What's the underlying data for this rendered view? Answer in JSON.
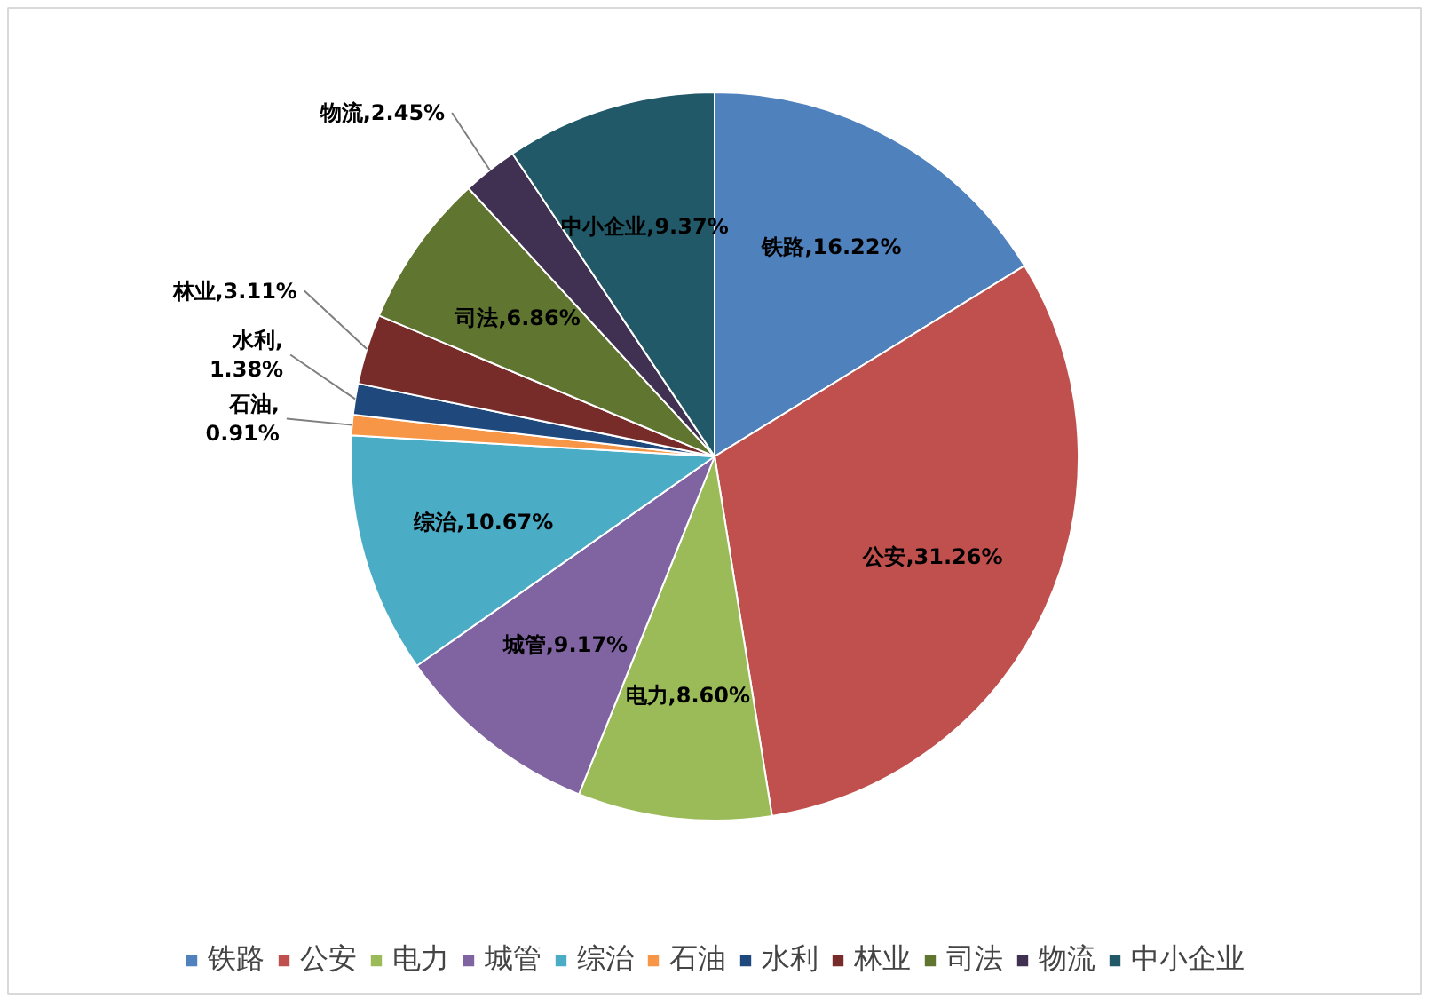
{
  "chart_data": {
    "type": "pie",
    "categories": [
      "铁路",
      "公安",
      "电力",
      "城管",
      "综治",
      "石油",
      "水利",
      "林业",
      "司法",
      "物流",
      "中小企业"
    ],
    "values": [
      16.22,
      31.26,
      8.6,
      9.17,
      10.67,
      0.91,
      1.38,
      3.11,
      6.86,
      2.45,
      9.37
    ],
    "colors": [
      "#4f81bd",
      "#c0504d",
      "#9bbb59",
      "#8064a2",
      "#4bacc6",
      "#f79646",
      "#1f497d",
      "#772c2a",
      "#5f7530",
      "#403152",
      "#215968"
    ],
    "value_labels": [
      "铁路,16.22%",
      "公安,31.26%",
      "电力,8.60%",
      "城管,9.17%",
      "综治,10.67%",
      "石油,\n0.91%",
      "水利,\n1.38%",
      "林业,3.11%",
      "司法,6.86%",
      "物流,2.45%",
      "中小企业,9.37%"
    ],
    "legend": "bottom"
  }
}
